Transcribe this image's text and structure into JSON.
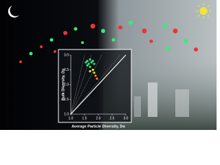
{
  "chart_data": {
    "type": "scatter",
    "x_label": "Average Particle Diversity, Dα",
    "y_label": "Bulk Diversity, Dγ",
    "xlim": [
      1.0,
      3.0
    ],
    "ylim": [
      1.0,
      3.0
    ],
    "xticks": [
      {
        "value": 1.0,
        "label": "1.0"
      },
      1.5,
      {
        "value": 2.0,
        "label": "2.0"
      },
      2.5,
      {
        "value": 3.0,
        "label": "3.0"
      }
    ],
    "yticks": [
      {
        "value": 1.0,
        "label": "1.0"
      },
      1.5,
      {
        "value": 2.0,
        "label": "2.0"
      },
      2.5,
      {
        "value": 3.0,
        "label": "3.0"
      }
    ],
    "series": [
      {
        "color": "#3ee07a",
        "x": [
          1.55,
          1.6,
          1.65,
          1.7,
          1.75,
          1.8,
          1.85,
          1.6,
          1.7
        ],
        "values": [
          2.75,
          2.8,
          2.7,
          2.85,
          2.75,
          2.8,
          2.7,
          2.65,
          2.6
        ]
      },
      {
        "color": "#e8e23a",
        "x": [
          1.7,
          1.8,
          1.85
        ],
        "values": [
          2.45,
          2.5,
          2.4
        ]
      },
      {
        "color": "#f08a30",
        "x": [
          1.9,
          1.95
        ],
        "values": [
          2.3,
          2.2
        ]
      }
    ]
  }
}
